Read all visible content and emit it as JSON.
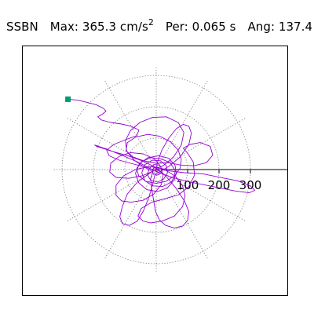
{
  "header": {
    "station": "SSBN",
    "max_label": "Max:",
    "max_value": "365.3",
    "max_unit": "cm/s",
    "max_unit_exp": "2",
    "period_label": "Per:",
    "period_value": "0.065 s",
    "angle_label": "Ang:",
    "angle_value": "137.4"
  },
  "colors": {
    "trace": "#9400d3",
    "grid": "#808080",
    "axis": "#000000",
    "start_marker": "#009b77",
    "frame": "#000000"
  },
  "chart_data": {
    "type": "scatter",
    "subtype": "polar acceleration particle-motion path",
    "title": "SSBN  Max: 365.3 cm/s2  Per: 0.065 s  Ang: 137.4",
    "r_ticks": [
      100,
      200,
      300
    ],
    "r_tick_labels": [
      "100",
      "200",
      "300"
    ],
    "r_max": 365.3,
    "peak_angle_deg": 137.4,
    "grid": true,
    "grid_spokes_deg": 30,
    "start_marker": "square",
    "units": "cm/s2",
    "series": [
      {
        "points": [
          [
            -281,
            224
          ],
          [
            -250,
            221
          ],
          [
            -220,
            214
          ],
          [
            -190,
            206
          ],
          [
            -168,
            195
          ],
          [
            -160,
            186
          ],
          [
            -172,
            176
          ],
          [
            -186,
            168
          ],
          [
            -175,
            158
          ],
          [
            -145,
            150
          ],
          [
            -110,
            145
          ],
          [
            -80,
            138
          ],
          [
            -55,
            126
          ],
          [
            -62,
            108
          ],
          [
            -98,
            95
          ],
          [
            -135,
            80
          ],
          [
            -158,
            62
          ],
          [
            -150,
            44
          ],
          [
            -118,
            30
          ],
          [
            -82,
            20
          ],
          [
            -50,
            12
          ],
          [
            -25,
            5
          ],
          [
            -10,
            0
          ]
        ]
      },
      {
        "points": [
          [
            -10,
            0
          ],
          [
            22,
            12
          ],
          [
            55,
            40
          ],
          [
            80,
            78
          ],
          [
            88,
            118
          ],
          [
            70,
            150
          ],
          [
            32,
            168
          ],
          [
            -12,
            166
          ],
          [
            -52,
            150
          ],
          [
            -82,
            124
          ],
          [
            -98,
            92
          ],
          [
            -94,
            58
          ],
          [
            -68,
            28
          ],
          [
            -38,
            8
          ],
          [
            -12,
            -6
          ]
        ]
      },
      {
        "points": [
          [
            -12,
            -6
          ],
          [
            -45,
            -20
          ],
          [
            -88,
            -28
          ],
          [
            -128,
            -25
          ],
          [
            -148,
            -8
          ],
          [
            -145,
            20
          ],
          [
            -118,
            42
          ],
          [
            -82,
            54
          ],
          [
            -42,
            50
          ],
          [
            -6,
            34
          ],
          [
            14,
            10
          ],
          [
            22,
            -18
          ],
          [
            16,
            -48
          ],
          [
            -8,
            -78
          ],
          [
            -42,
            -98
          ],
          [
            -80,
            -104
          ]
        ]
      },
      {
        "points": [
          [
            -80,
            -104
          ],
          [
            -110,
            -100
          ],
          [
            -128,
            -82
          ],
          [
            -128,
            -50
          ],
          [
            -104,
            -20
          ],
          [
            -66,
            0
          ],
          [
            -22,
            10
          ],
          [
            24,
            2
          ],
          [
            62,
            -22
          ],
          [
            84,
            -52
          ],
          [
            92,
            -84
          ],
          [
            84,
            -118
          ],
          [
            58,
            -148
          ],
          [
            20,
            -164
          ],
          [
            -18,
            -170
          ],
          [
            -42,
            -164
          ]
        ]
      },
      {
        "points": [
          [
            -42,
            -164
          ],
          [
            -58,
            -148
          ],
          [
            -48,
            -124
          ],
          [
            -14,
            -104
          ],
          [
            30,
            -92
          ],
          [
            72,
            -80
          ],
          [
            104,
            -54
          ],
          [
            122,
            -18
          ],
          [
            118,
            24
          ],
          [
            100,
            52
          ],
          [
            86,
            68
          ],
          [
            108,
            80
          ],
          [
            140,
            86
          ],
          [
            172,
            74
          ],
          [
            180,
            46
          ],
          [
            160,
            22
          ],
          [
            120,
            12
          ],
          [
            80,
            14
          ],
          [
            40,
            22
          ],
          [
            0,
            20
          ]
        ]
      },
      {
        "points": [
          [
            0,
            20
          ],
          [
            -40,
            28
          ],
          [
            -74,
            40
          ],
          [
            -96,
            60
          ],
          [
            -92,
            86
          ],
          [
            -64,
            104
          ],
          [
            -26,
            112
          ],
          [
            12,
            106
          ],
          [
            46,
            88
          ],
          [
            70,
            62
          ],
          [
            80,
            32
          ],
          [
            76,
            4
          ],
          [
            58,
            -20
          ],
          [
            30,
            -38
          ],
          [
            0,
            -44
          ],
          [
            -32,
            -38
          ],
          [
            -56,
            -20
          ],
          [
            -62,
            4
          ],
          [
            -46,
            26
          ],
          [
            -16,
            38
          ],
          [
            16,
            34
          ]
        ]
      },
      {
        "points": [
          [
            16,
            34
          ],
          [
            44,
            22
          ],
          [
            60,
            -2
          ],
          [
            58,
            -32
          ],
          [
            36,
            -58
          ],
          [
            4,
            -70
          ],
          [
            -30,
            -64
          ],
          [
            -56,
            -42
          ],
          [
            -66,
            -12
          ],
          [
            -54,
            18
          ],
          [
            -26,
            38
          ],
          [
            8,
            44
          ],
          [
            40,
            36
          ],
          [
            60,
            14
          ],
          [
            64,
            -14
          ],
          [
            48,
            -40
          ],
          [
            20,
            -54
          ],
          [
            -10,
            -52
          ]
        ]
      },
      {
        "points": [
          [
            -10,
            -52
          ],
          [
            -36,
            -36
          ],
          [
            -46,
            -10
          ],
          [
            -36,
            16
          ],
          [
            -12,
            30
          ],
          [
            14,
            28
          ],
          [
            32,
            12
          ],
          [
            36,
            -10
          ],
          [
            24,
            -30
          ],
          [
            4,
            -40
          ],
          [
            -18,
            -34
          ],
          [
            -28,
            -16
          ],
          [
            -22,
            4
          ],
          [
            -6,
            16
          ],
          [
            10,
            14
          ],
          [
            18,
            2
          ],
          [
            14,
            -12
          ],
          [
            2,
            -18
          ],
          [
            -10,
            -12
          ],
          [
            -12,
            0
          ],
          [
            -4,
            8
          ],
          [
            6,
            6
          ],
          [
            8,
            -2
          ],
          [
            2,
            -6
          ],
          [
            -4,
            -2
          ],
          [
            0,
            2
          ]
        ]
      },
      {
        "points": [
          [
            0,
            2
          ],
          [
            40,
            -4
          ],
          [
            90,
            -10
          ],
          [
            150,
            -14
          ],
          [
            210,
            -26
          ],
          [
            260,
            -36
          ],
          [
            300,
            -52
          ],
          [
            314,
            -66
          ],
          [
            296,
            -74
          ],
          [
            250,
            -68
          ],
          [
            200,
            -58
          ],
          [
            150,
            -48
          ],
          [
            100,
            -38
          ],
          [
            55,
            -26
          ],
          [
            20,
            -14
          ],
          [
            -6,
            -4
          ]
        ]
      },
      {
        "points": [
          [
            -6,
            -4
          ],
          [
            -50,
            20
          ],
          [
            -110,
            46
          ],
          [
            -160,
            66
          ],
          [
            -196,
            78
          ],
          [
            -190,
            74
          ],
          [
            -140,
            58
          ],
          [
            -90,
            44
          ],
          [
            -40,
            26
          ],
          [
            -4,
            8
          ]
        ]
      },
      {
        "points": [
          [
            -4,
            8
          ],
          [
            30,
            -20
          ],
          [
            62,
            -58
          ],
          [
            90,
            -100
          ],
          [
            104,
            -134
          ],
          [
            100,
            -162
          ],
          [
            84,
            -180
          ],
          [
            58,
            -186
          ],
          [
            30,
            -178
          ],
          [
            10,
            -160
          ],
          [
            -2,
            -134
          ],
          [
            -8,
            -100
          ],
          [
            -14,
            -64
          ],
          [
            -18,
            -30
          ],
          [
            -10,
            -4
          ]
        ]
      },
      {
        "points": [
          [
            -10,
            -4
          ],
          [
            -60,
            -40
          ],
          [
            -92,
            -78
          ],
          [
            -108,
            -118
          ],
          [
            -116,
            -150
          ],
          [
            -108,
            -172
          ],
          [
            -86,
            -178
          ],
          [
            -60,
            -164
          ],
          [
            -40,
            -130
          ],
          [
            -24,
            -90
          ],
          [
            -12,
            -50
          ],
          [
            -4,
            -16
          ]
        ]
      },
      {
        "points": [
          [
            -4,
            -16
          ],
          [
            40,
            10
          ],
          [
            76,
            40
          ],
          [
            104,
            80
          ],
          [
            112,
            116
          ],
          [
            104,
            138
          ],
          [
            86,
            144
          ],
          [
            64,
            130
          ],
          [
            40,
            100
          ],
          [
            18,
            62
          ],
          [
            4,
            24
          ],
          [
            0,
            0
          ]
        ]
      }
    ]
  }
}
